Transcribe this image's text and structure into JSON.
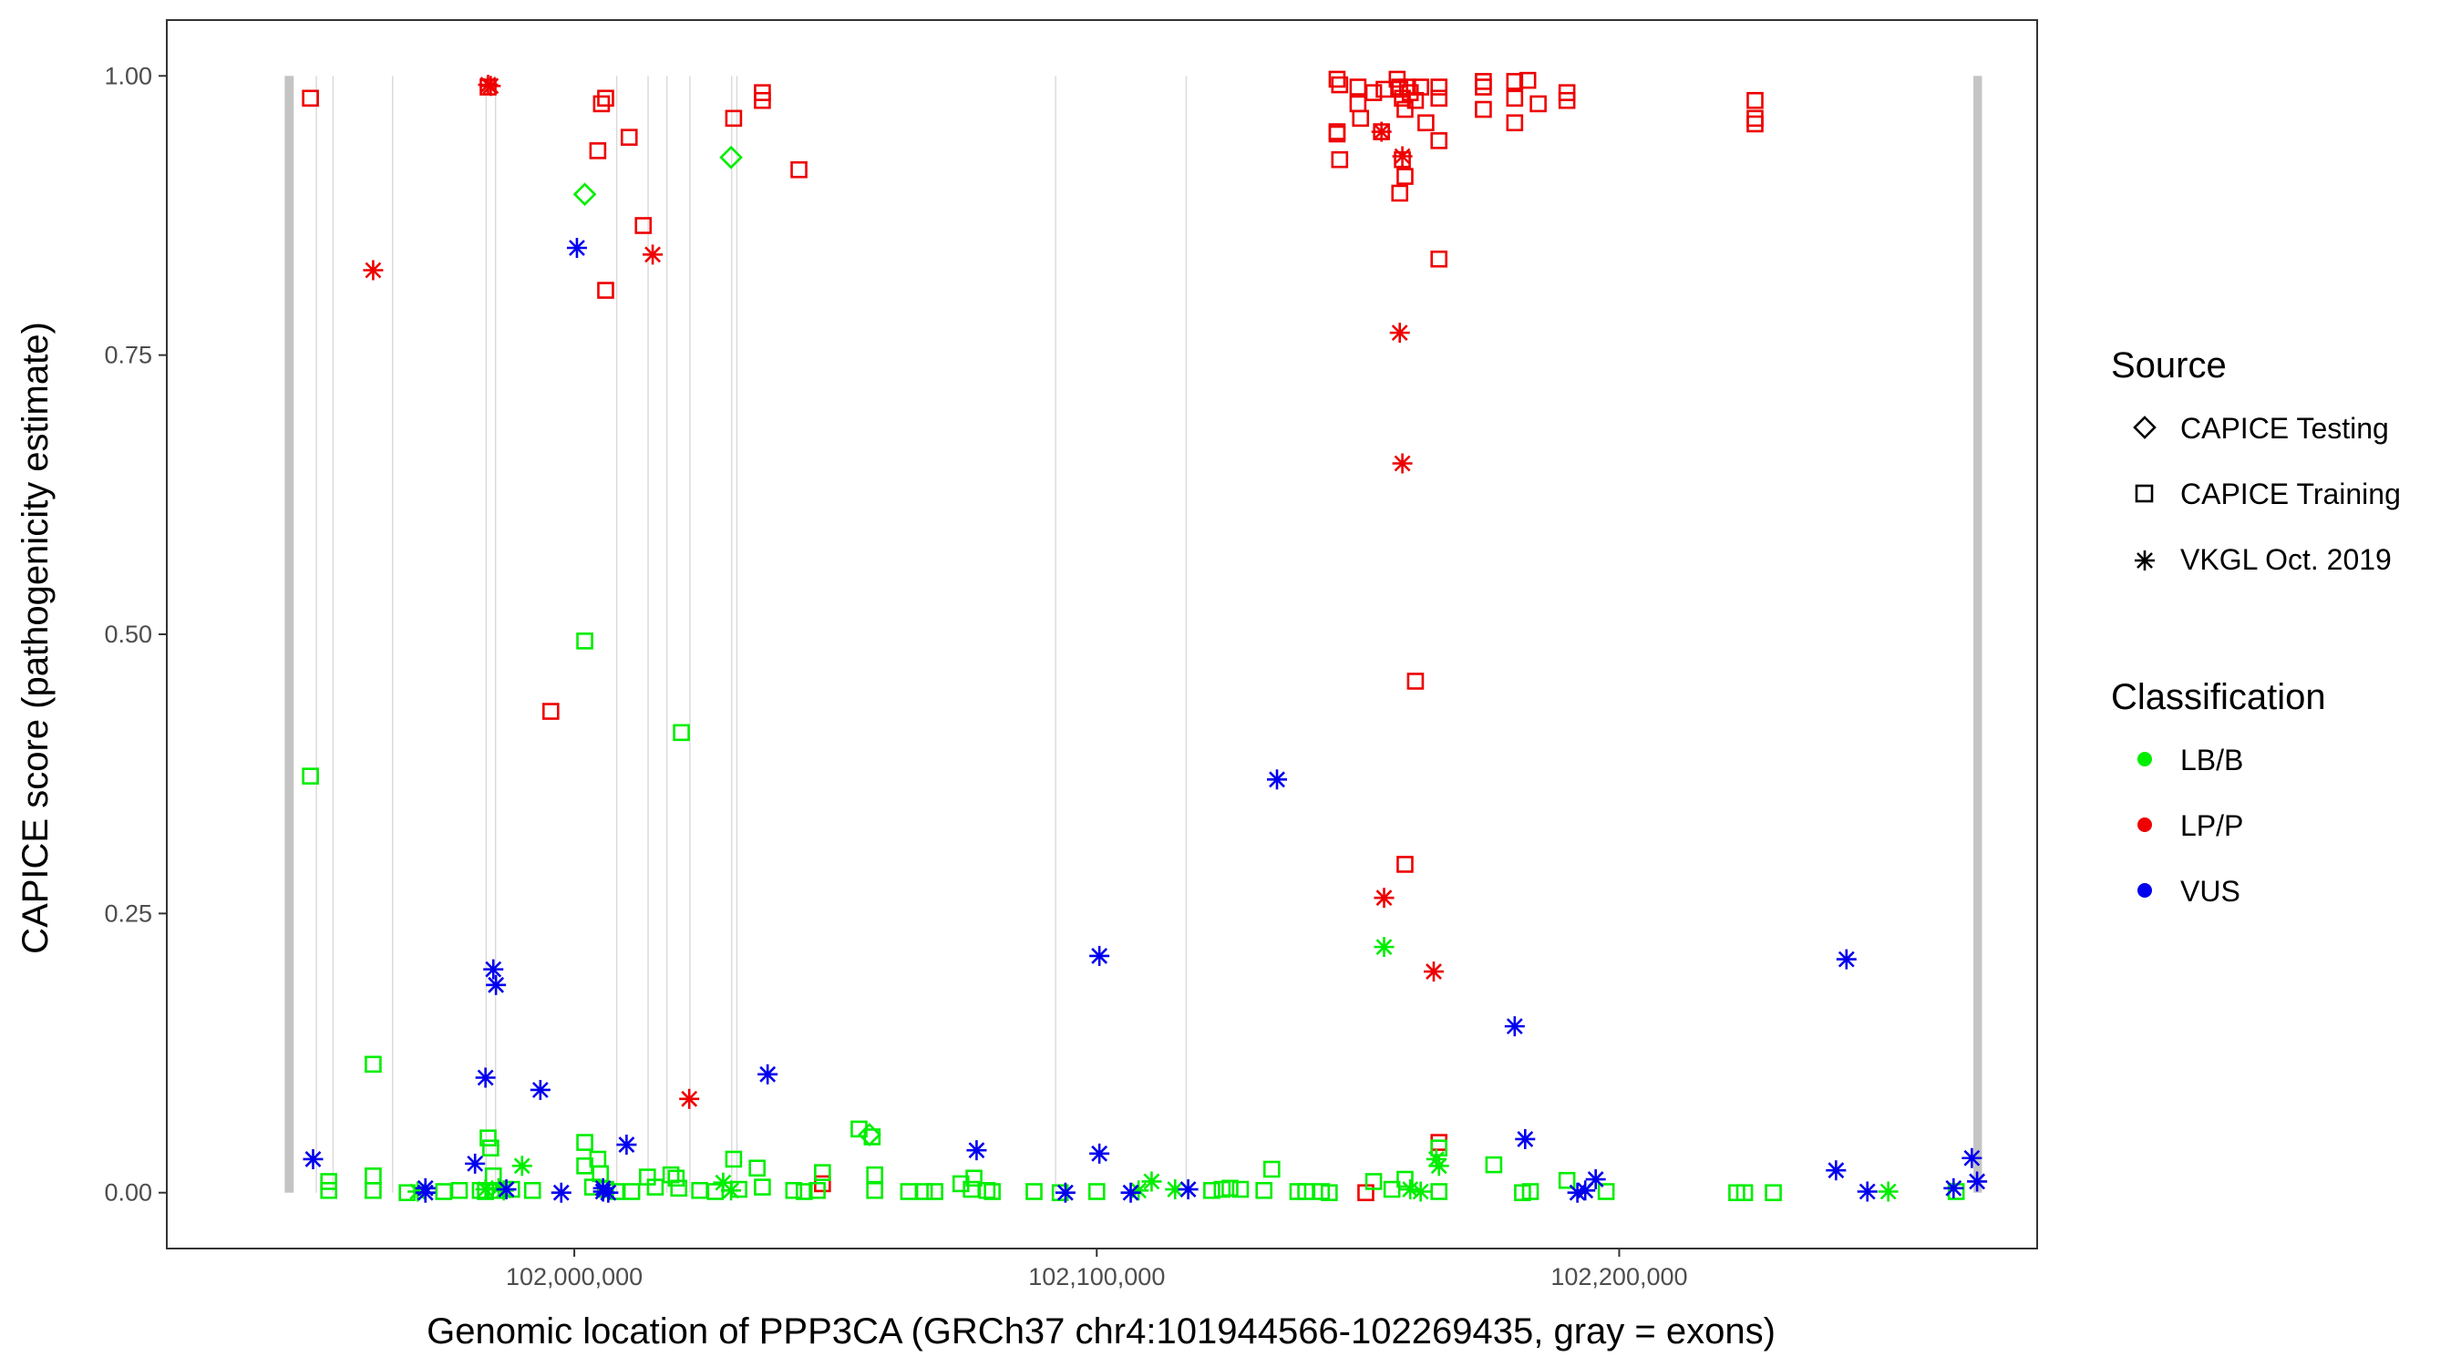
{
  "chart_data": {
    "type": "scatter",
    "xlabel": "Genomic location of PPP3CA (GRCh37 chr4:101944566-102269435, gray = exons)",
    "ylabel": "CAPICE score (pathogenicity estimate)",
    "xlim": [
      101922000,
      102280000
    ],
    "ylim": [
      -0.05,
      1.05
    ],
    "x_ticks": [
      102000000,
      102100000,
      102200000
    ],
    "x_tick_labels": [
      "102,000,000",
      "102,100,000",
      "102,200,000"
    ],
    "y_ticks": [
      0,
      0.25,
      0.5,
      0.75,
      1.0
    ],
    "y_tick_labels": [
      "0.00",
      "0.25",
      "0.50",
      "0.75",
      "1.00"
    ],
    "exons": [
      [
        101944566,
        101946300
      ],
      [
        101950500,
        101950700
      ],
      [
        101953700,
        101953900
      ],
      [
        101965100,
        101965300
      ],
      [
        101983000,
        101983250
      ],
      [
        101984800,
        101985050
      ],
      [
        102008000,
        102008200
      ],
      [
        102014000,
        102014200
      ],
      [
        102017600,
        102017800
      ],
      [
        102022000,
        102022200
      ],
      [
        102030000,
        102030200
      ],
      [
        102031000,
        102031200
      ],
      [
        102092000,
        102092200
      ],
      [
        102117000,
        102117200
      ],
      [
        102267800,
        102269435
      ]
    ],
    "legend": {
      "source_title": "Source",
      "sources": [
        "CAPICE Testing",
        "CAPICE Training",
        "VKGL Oct. 2019"
      ],
      "classification_title": "Classification",
      "classes": [
        "LB/B",
        "LP/P",
        "VUS"
      ],
      "colors": {
        "LB/B": "#00ee00",
        "LP/P": "#ee0000",
        "VUS": "#0000ee"
      }
    },
    "series": [
      {
        "name": "LP/P · CAPICE Training",
        "class": "LP/P",
        "source": "CAPICE Training",
        "points": [
          [
            101949500,
            0.98
          ],
          [
            101983500,
            0.99
          ],
          [
            102004500,
            0.933
          ],
          [
            102005200,
            0.975
          ],
          [
            102006000,
            0.98
          ],
          [
            102006000,
            0.808
          ],
          [
            102010500,
            0.945
          ],
          [
            102013200,
            0.866
          ],
          [
            101995500,
            0.431
          ],
          [
            102030500,
            0.962
          ],
          [
            102036000,
            0.985
          ],
          [
            102036000,
            0.978
          ],
          [
            102043000,
            0.916
          ],
          [
            102047500,
            0.008
          ],
          [
            102146000,
            0.997
          ],
          [
            102146500,
            0.992
          ],
          [
            102146000,
            0.95
          ],
          [
            102146000,
            0.948
          ],
          [
            102146500,
            0.925
          ],
          [
            102150000,
            0.99
          ],
          [
            102150000,
            0.975
          ],
          [
            102150500,
            0.962
          ],
          [
            102153000,
            0.985
          ],
          [
            102154500,
            0.95
          ],
          [
            102155000,
            0.988
          ],
          [
            102157500,
            0.997
          ],
          [
            102158000,
            0.99
          ],
          [
            102158000,
            0.988
          ],
          [
            102158500,
            0.98
          ],
          [
            102159000,
            0.97
          ],
          [
            102159500,
            0.99
          ],
          [
            102160000,
            0.985
          ],
          [
            102161000,
            0.978
          ],
          [
            102162000,
            0.99
          ],
          [
            102163000,
            0.958
          ],
          [
            102165500,
            0.99
          ],
          [
            102165500,
            0.98
          ],
          [
            102165500,
            0.942
          ],
          [
            102165500,
            0.836
          ],
          [
            102158500,
            0.925
          ],
          [
            102159000,
            0.91
          ],
          [
            102158000,
            0.895
          ],
          [
            102161000,
            0.458
          ],
          [
            102159000,
            0.294
          ],
          [
            102165500,
            0.045
          ],
          [
            102174000,
            0.995
          ],
          [
            102174000,
            0.99
          ],
          [
            102174000,
            0.97
          ],
          [
            102180000,
            0.995
          ],
          [
            102180000,
            0.98
          ],
          [
            102180000,
            0.958
          ],
          [
            102182500,
            0.996
          ],
          [
            102184500,
            0.975
          ],
          [
            102190000,
            0.985
          ],
          [
            102190000,
            0.978
          ],
          [
            102226000,
            0.978
          ],
          [
            102226000,
            0.962
          ],
          [
            102226000,
            0.957
          ],
          [
            102151500,
            0.0
          ]
        ]
      },
      {
        "name": "LP/P · VKGL Oct. 2019",
        "class": "LP/P",
        "source": "VKGL Oct. 2019",
        "points": [
          [
            101961500,
            0.826
          ],
          [
            101983500,
            0.992
          ],
          [
            101984000,
            0.991
          ],
          [
            102015000,
            0.84
          ],
          [
            102022000,
            0.084
          ],
          [
            102154500,
            0.95
          ],
          [
            102158500,
            0.928
          ],
          [
            102158000,
            0.77
          ],
          [
            102158500,
            0.653
          ],
          [
            102155000,
            0.264
          ],
          [
            102164500,
            0.198
          ]
        ]
      },
      {
        "name": "LB/B · CAPICE Testing",
        "class": "LB/B",
        "source": "CAPICE Testing",
        "points": [
          [
            102002000,
            0.894
          ],
          [
            102030000,
            0.927
          ],
          [
            102056500,
            0.052
          ]
        ]
      },
      {
        "name": "LB/B · CAPICE Training",
        "class": "LB/B",
        "source": "CAPICE Training",
        "points": [
          [
            101949500,
            0.373
          ],
          [
            101961500,
            0.115
          ],
          [
            102002000,
            0.494
          ],
          [
            102020500,
            0.412
          ],
          [
            101953000,
            0.01
          ],
          [
            101953000,
            0.002
          ],
          [
            101961500,
            0.015
          ],
          [
            101961500,
            0.002
          ],
          [
            101983500,
            0.049
          ],
          [
            101984000,
            0.04
          ],
          [
            101984500,
            0.015
          ],
          [
            101982000,
            0.002
          ],
          [
            101983000,
            0.001
          ],
          [
            101985000,
            0.002
          ],
          [
            101988000,
            0.003
          ],
          [
            101992000,
            0.002
          ],
          [
            101978000,
            0.002
          ],
          [
            101975000,
            0.001
          ],
          [
            101968000,
            0.0
          ],
          [
            102002000,
            0.045
          ],
          [
            102002000,
            0.024
          ],
          [
            102003500,
            0.005
          ],
          [
            102004500,
            0.03
          ],
          [
            102005000,
            0.017
          ],
          [
            102006000,
            0.003
          ],
          [
            102008000,
            0.001
          ],
          [
            102011000,
            0.001
          ],
          [
            102014000,
            0.014
          ],
          [
            102015500,
            0.005
          ],
          [
            102018500,
            0.016
          ],
          [
            102019500,
            0.013
          ],
          [
            102020000,
            0.004
          ],
          [
            102024000,
            0.002
          ],
          [
            102027000,
            0.001
          ],
          [
            102030500,
            0.03
          ],
          [
            102031500,
            0.003
          ],
          [
            102035000,
            0.022
          ],
          [
            102036000,
            0.005
          ],
          [
            102042000,
            0.002
          ],
          [
            102044000,
            0.001
          ],
          [
            102047500,
            0.018
          ],
          [
            102046500,
            0.002
          ],
          [
            102054500,
            0.057
          ],
          [
            102057000,
            0.05
          ],
          [
            102057500,
            0.016
          ],
          [
            102057500,
            0.002
          ],
          [
            102064000,
            0.001
          ],
          [
            102067000,
            0.001
          ],
          [
            102069000,
            0.001
          ],
          [
            102074000,
            0.008
          ],
          [
            102076500,
            0.013
          ],
          [
            102076000,
            0.003
          ],
          [
            102079000,
            0.002
          ],
          [
            102080000,
            0.001
          ],
          [
            102088000,
            0.001
          ],
          [
            102093000,
            0.0
          ],
          [
            102100000,
            0.001
          ],
          [
            102122000,
            0.002
          ],
          [
            102124000,
            0.003
          ],
          [
            102125500,
            0.004
          ],
          [
            102127500,
            0.003
          ],
          [
            102133500,
            0.021
          ],
          [
            102132000,
            0.002
          ],
          [
            102138500,
            0.001
          ],
          [
            102140000,
            0.001
          ],
          [
            102143000,
            0.001
          ],
          [
            102144500,
            0.0
          ],
          [
            102153000,
            0.01
          ],
          [
            102156500,
            0.003
          ],
          [
            102159000,
            0.012
          ],
          [
            102165500,
            0.04
          ],
          [
            102165500,
            0.001
          ],
          [
            102176000,
            0.025
          ],
          [
            102181500,
            0.0
          ],
          [
            102183000,
            0.001
          ],
          [
            102190000,
            0.011
          ],
          [
            102197500,
            0.001
          ],
          [
            102222500,
            0.0
          ],
          [
            102224000,
            0.0
          ],
          [
            102229500,
            0.0
          ],
          [
            102264500,
            0.001
          ]
        ]
      },
      {
        "name": "LB/B · VKGL Oct. 2019",
        "class": "LB/B",
        "source": "VKGL Oct. 2019",
        "points": [
          [
            101990000,
            0.024
          ],
          [
            101970000,
            0.001
          ],
          [
            101983000,
            0.003
          ],
          [
            101985500,
            0.004
          ],
          [
            101986500,
            0.002
          ],
          [
            102028500,
            0.009
          ],
          [
            102030000,
            0.002
          ],
          [
            102110500,
            0.01
          ],
          [
            102108000,
            0.002
          ],
          [
            102115000,
            0.003
          ],
          [
            102155000,
            0.22
          ],
          [
            102165000,
            0.03
          ],
          [
            102165500,
            0.024
          ],
          [
            102160000,
            0.003
          ],
          [
            102162000,
            0.001
          ],
          [
            102251500,
            0.001
          ]
        ]
      },
      {
        "name": "VUS · VKGL Oct. 2019",
        "class": "VUS",
        "source": "VKGL Oct. 2019",
        "points": [
          [
            101950000,
            0.03
          ],
          [
            101971500,
            0.004
          ],
          [
            101971500,
            0.0
          ],
          [
            101981000,
            0.026
          ],
          [
            101983000,
            0.103
          ],
          [
            101984500,
            0.2
          ],
          [
            101985000,
            0.186
          ],
          [
            101987000,
            0.003
          ],
          [
            101993500,
            0.092
          ],
          [
            101997500,
            0.0
          ],
          [
            102000500,
            0.846
          ],
          [
            102005500,
            0.004
          ],
          [
            102005500,
            0.001
          ],
          [
            102006500,
            0.0
          ],
          [
            102010000,
            0.043
          ],
          [
            102037000,
            0.106
          ],
          [
            102077000,
            0.038
          ],
          [
            102094000,
            0.0
          ],
          [
            102100500,
            0.212
          ],
          [
            102100500,
            0.035
          ],
          [
            102106500,
            0.0
          ],
          [
            102117500,
            0.003
          ],
          [
            102134500,
            0.37
          ],
          [
            102180000,
            0.149
          ],
          [
            102182000,
            0.048
          ],
          [
            102193500,
            0.002
          ],
          [
            102195500,
            0.012
          ],
          [
            102192000,
            0.0
          ],
          [
            102241500,
            0.02
          ],
          [
            102243500,
            0.209
          ],
          [
            102247500,
            0.001
          ],
          [
            102264000,
            0.004
          ],
          [
            102267500,
            0.031
          ],
          [
            102268500,
            0.01
          ]
        ]
      }
    ]
  }
}
